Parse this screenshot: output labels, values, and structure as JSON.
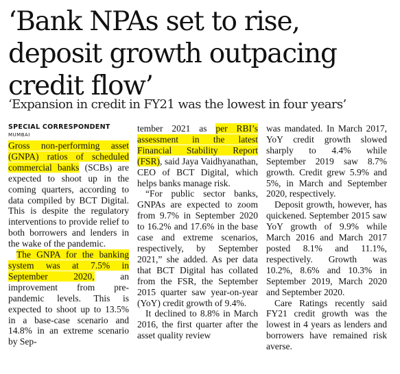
{
  "article": {
    "headline": "‘Bank NPAs set to rise, deposit growth outpacing credit flow’",
    "subheadline": "‘Expansion in credit in FY21 was the lowest in four years’",
    "byline": "SPECIAL CORRESPONDENT",
    "dateline": "MUMBAI",
    "col1": {
      "p1_highlight": "Gross non-performing asset (GNPA) ratios of scheduled commercial banks",
      "p1_rest": " (SCBs) are expected to shoot up in the coming quarters, according to data compiled by BCT Digital. This is despite the regulatory interventions to provide relief to both borrowers and lenders in the wake of the pandemic.",
      "p2_highlight": "The GNPA for the banking system was at 7.5% in September 2020,",
      "p2_rest": " an improvement from pre-pandemic levels. This is expected to shoot up to 13.5% in a base-case scenario and 14.8% in an extreme scenario by Sep-"
    },
    "col2": {
      "p1_start": "tember 2021 as ",
      "p1_highlight": "per RBI’s assessment in the latest Financial Stability Report (FSR)",
      "p1_rest": ", said Jaya Vaidhyanathan, CEO of BCT Digital, which helps banks manage risk.",
      "p2": "“For public sector banks, GNPAs are expected to zoom from 9.7% in September 2020 to 16.2% and 17.6% in the base case and extreme scenarios, respectively, by September 2021,” she added. As per data that BCT Digital has collated from the FSR, the September 2015 quarter saw year-on-year (YoY) credit growth of 9.4%.",
      "p3": "It declined to 8.8% in March 2016, the first quarter after the asset quality review"
    },
    "col3": {
      "p1": "was mandated. In March 2017, YoY credit growth slowed sharply to 4.4% while September 2019 saw 8.7% growth. Credit grew 5.9% and 5%, in March and September 2020, respectively.",
      "p2": "Deposit growth, however, has quickened. September 2015 saw YoY growth of 9.9% while March 2016 and March 2017 posted 8.1% and 11.1%, respectively. Growth was 10.2%, 8.6% and 10.3% in September 2019, March 2020 and September 2020.",
      "p3": "Care Ratings recently said FY21 credit growth was the lowest in 4 years as lenders and borrowers have remained risk averse."
    },
    "highlight_color": "#fff200"
  }
}
